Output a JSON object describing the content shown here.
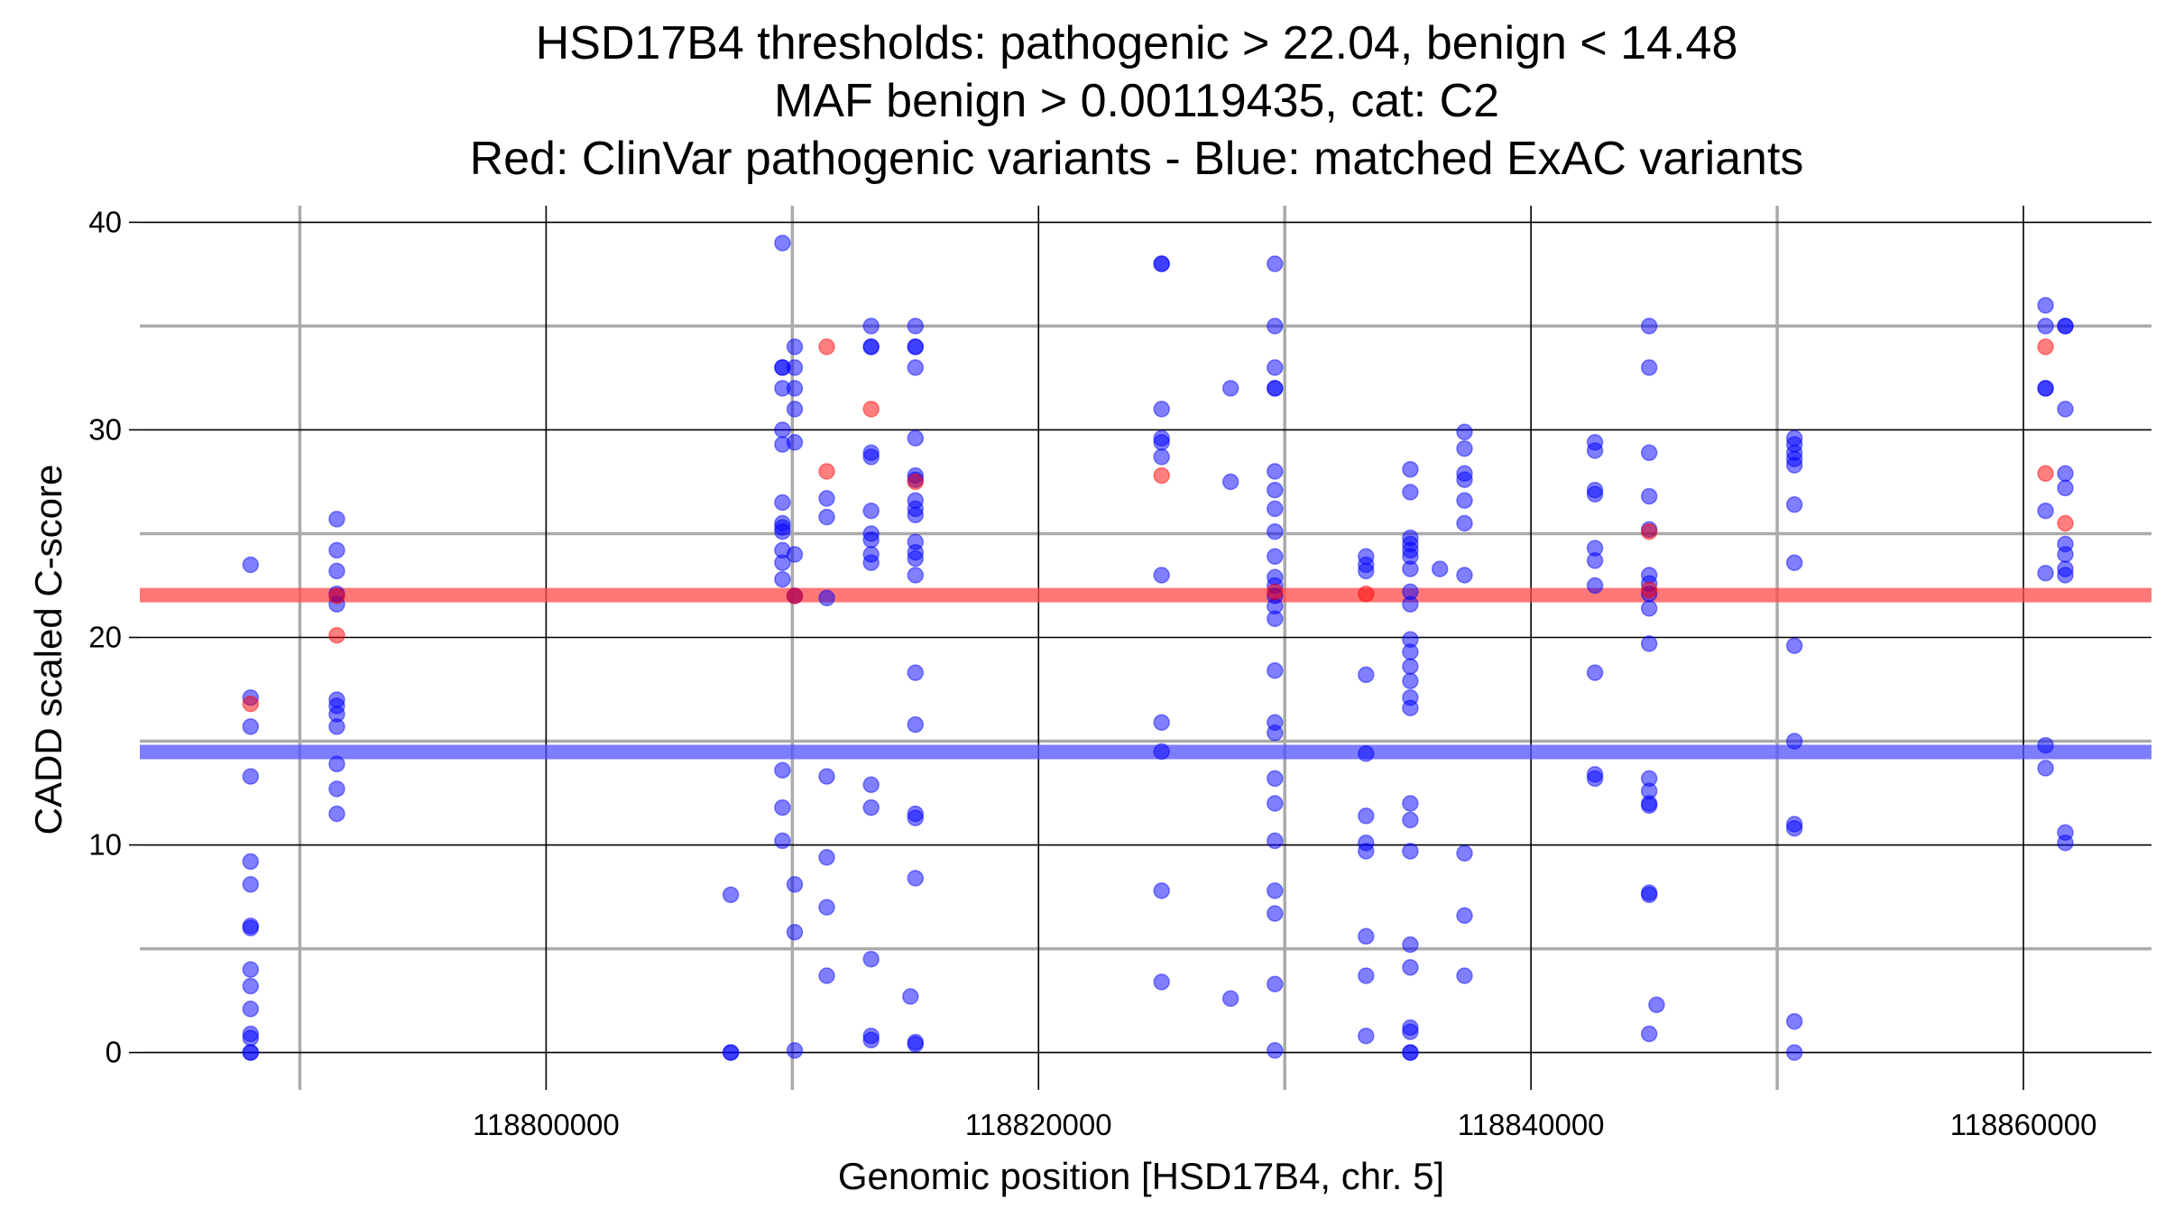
{
  "chart_data": {
    "type": "scatter",
    "title_lines": [
      "HSD17B4 thresholds: pathogenic > 22.04, benign < 14.48",
      "MAF benign > 0.00119435, cat: C2",
      "Red: ClinVar pathogenic variants - Blue: matched ExAC variants"
    ],
    "xlabel": "Genomic position [HSD17B4, chr. 5]",
    "ylabel": "CADD scaled C-score",
    "xlim": [
      118783500,
      118865200
    ],
    "ylim": [
      -1.8,
      40.8
    ],
    "x_ticks": [
      118800000,
      118820000,
      118840000,
      118860000
    ],
    "x_tick_labels": [
      "118800000",
      "118820000",
      "118840000",
      "118860000"
    ],
    "y_ticks": [
      0,
      10,
      20,
      30,
      40
    ],
    "y_tick_labels": [
      "0",
      "10",
      "20",
      "30",
      "40"
    ],
    "x_minor": [
      118790000,
      118810000,
      118830000,
      118850000
    ],
    "y_minor": [
      5,
      15,
      25,
      35
    ],
    "thresholds": {
      "pathogenic": 22.04,
      "benign": 14.48,
      "pathogenic_color": "#ff4a4a",
      "benign_color": "#5252ff"
    },
    "colors": {
      "benign_points": "#0000ff",
      "pathogenic_points": "#ff0000"
    },
    "series": [
      {
        "name": "matched ExAC variants",
        "color": "#0000ff",
        "points": [
          [
            118788000,
            23.5
          ],
          [
            118788000,
            17.1
          ],
          [
            118788000,
            15.7
          ],
          [
            118788000,
            13.3
          ],
          [
            118788000,
            9.2
          ],
          [
            118788000,
            8.1
          ],
          [
            118788000,
            6.1
          ],
          [
            118788000,
            6.0
          ],
          [
            118788000,
            4.0
          ],
          [
            118788000,
            3.2
          ],
          [
            118788000,
            2.1
          ],
          [
            118788000,
            0.9
          ],
          [
            118788000,
            0.7
          ],
          [
            118788000,
            0.0
          ],
          [
            118788000,
            0.0
          ],
          [
            118791500,
            25.7
          ],
          [
            118791500,
            24.2
          ],
          [
            118791500,
            23.2
          ],
          [
            118791500,
            22.1
          ],
          [
            118791500,
            21.6
          ],
          [
            118791500,
            17.0
          ],
          [
            118791500,
            16.7
          ],
          [
            118791500,
            16.3
          ],
          [
            118791500,
            15.7
          ],
          [
            118791500,
            13.9
          ],
          [
            118791500,
            12.7
          ],
          [
            118791500,
            11.5
          ],
          [
            118807500,
            7.6
          ],
          [
            118807500,
            0.0
          ],
          [
            118807500,
            0.0
          ],
          [
            118809600,
            39.0
          ],
          [
            118809600,
            33.0
          ],
          [
            118809600,
            33.0
          ],
          [
            118809600,
            32.0
          ],
          [
            118809600,
            30.0
          ],
          [
            118809600,
            29.3
          ],
          [
            118809600,
            26.5
          ],
          [
            118809600,
            25.5
          ],
          [
            118809600,
            25.3
          ],
          [
            118809600,
            25.1
          ],
          [
            118809600,
            24.2
          ],
          [
            118809600,
            23.6
          ],
          [
            118809600,
            22.8
          ],
          [
            118809600,
            13.6
          ],
          [
            118809600,
            11.8
          ],
          [
            118809600,
            10.2
          ],
          [
            118810100,
            34.0
          ],
          [
            118810100,
            33.0
          ],
          [
            118810100,
            32.0
          ],
          [
            118810100,
            31.0
          ],
          [
            118810100,
            29.4
          ],
          [
            118810100,
            24.0
          ],
          [
            118810100,
            22.0
          ],
          [
            118810100,
            8.1
          ],
          [
            118810100,
            5.8
          ],
          [
            118810100,
            0.1
          ],
          [
            118811400,
            26.7
          ],
          [
            118811400,
            25.8
          ],
          [
            118811400,
            21.9
          ],
          [
            118811400,
            13.3
          ],
          [
            118811400,
            9.4
          ],
          [
            118811400,
            7.0
          ],
          [
            118811400,
            3.7
          ],
          [
            118813200,
            35.0
          ],
          [
            118813200,
            34.0
          ],
          [
            118813200,
            34.0
          ],
          [
            118813200,
            28.9
          ],
          [
            118813200,
            28.7
          ],
          [
            118813200,
            26.1
          ],
          [
            118813200,
            25.0
          ],
          [
            118813200,
            24.7
          ],
          [
            118813200,
            24.0
          ],
          [
            118813200,
            23.6
          ],
          [
            118813200,
            12.9
          ],
          [
            118813200,
            11.8
          ],
          [
            118813200,
            4.5
          ],
          [
            118813200,
            0.8
          ],
          [
            118813200,
            0.6
          ],
          [
            118815000,
            35.0
          ],
          [
            118815000,
            34.0
          ],
          [
            118815000,
            34.0
          ],
          [
            118815000,
            33.0
          ],
          [
            118815000,
            29.6
          ],
          [
            118815000,
            27.8
          ],
          [
            118815000,
            27.6
          ],
          [
            118815000,
            26.6
          ],
          [
            118815000,
            26.2
          ],
          [
            118815000,
            25.9
          ],
          [
            118815000,
            24.6
          ],
          [
            118815000,
            24.1
          ],
          [
            118815000,
            23.8
          ],
          [
            118815000,
            23.0
          ],
          [
            118815000,
            18.3
          ],
          [
            118815000,
            15.8
          ],
          [
            118815000,
            11.5
          ],
          [
            118815000,
            11.3
          ],
          [
            118815000,
            8.4
          ],
          [
            118815000,
            0.5
          ],
          [
            118815000,
            0.4
          ],
          [
            118814800,
            2.7
          ],
          [
            118825000,
            38.0
          ],
          [
            118825000,
            38.0
          ],
          [
            118825000,
            31.0
          ],
          [
            118825000,
            29.6
          ],
          [
            118825000,
            29.4
          ],
          [
            118825000,
            28.7
          ],
          [
            118825000,
            23.0
          ],
          [
            118825000,
            15.9
          ],
          [
            118825000,
            14.5
          ],
          [
            118825000,
            7.8
          ],
          [
            118825000,
            3.4
          ],
          [
            118827800,
            32.0
          ],
          [
            118827800,
            27.5
          ],
          [
            118827800,
            2.6
          ],
          [
            118829600,
            38.0
          ],
          [
            118829600,
            35.0
          ],
          [
            118829600,
            33.0
          ],
          [
            118829600,
            32.0
          ],
          [
            118829600,
            32.0
          ],
          [
            118829600,
            28.0
          ],
          [
            118829600,
            27.1
          ],
          [
            118829600,
            26.2
          ],
          [
            118829600,
            25.1
          ],
          [
            118829600,
            23.9
          ],
          [
            118829600,
            22.9
          ],
          [
            118829600,
            22.5
          ],
          [
            118829600,
            22.0
          ],
          [
            118829600,
            21.5
          ],
          [
            118829600,
            20.9
          ],
          [
            118829600,
            18.4
          ],
          [
            118829600,
            15.9
          ],
          [
            118829600,
            15.4
          ],
          [
            118829600,
            13.2
          ],
          [
            118829600,
            12.0
          ],
          [
            118829600,
            10.2
          ],
          [
            118829600,
            7.8
          ],
          [
            118829600,
            6.7
          ],
          [
            118829600,
            3.3
          ],
          [
            118829600,
            0.1
          ],
          [
            118833300,
            23.9
          ],
          [
            118833300,
            23.5
          ],
          [
            118833300,
            23.2
          ],
          [
            118833300,
            18.2
          ],
          [
            118833300,
            14.4
          ],
          [
            118833300,
            11.4
          ],
          [
            118833300,
            10.1
          ],
          [
            118833300,
            9.7
          ],
          [
            118833300,
            5.6
          ],
          [
            118833300,
            3.7
          ],
          [
            118833300,
            0.8
          ],
          [
            118835100,
            28.1
          ],
          [
            118835100,
            27.0
          ],
          [
            118835100,
            24.8
          ],
          [
            118835100,
            24.5
          ],
          [
            118835100,
            24.2
          ],
          [
            118835100,
            23.9
          ],
          [
            118835100,
            23.3
          ],
          [
            118835100,
            22.2
          ],
          [
            118835100,
            21.6
          ],
          [
            118835100,
            19.9
          ],
          [
            118835100,
            19.3
          ],
          [
            118835100,
            18.6
          ],
          [
            118835100,
            17.9
          ],
          [
            118835100,
            17.1
          ],
          [
            118835100,
            16.6
          ],
          [
            118835100,
            12.0
          ],
          [
            118835100,
            11.2
          ],
          [
            118835100,
            9.7
          ],
          [
            118835100,
            5.2
          ],
          [
            118835100,
            4.1
          ],
          [
            118835100,
            1.2
          ],
          [
            118835100,
            1.0
          ],
          [
            118835100,
            0.0
          ],
          [
            118835100,
            0.0
          ],
          [
            118836300,
            23.3
          ],
          [
            118837300,
            29.9
          ],
          [
            118837300,
            29.1
          ],
          [
            118837300,
            27.9
          ],
          [
            118837300,
            27.6
          ],
          [
            118837300,
            26.6
          ],
          [
            118837300,
            25.5
          ],
          [
            118837300,
            23.0
          ],
          [
            118837300,
            9.6
          ],
          [
            118837300,
            6.6
          ],
          [
            118837300,
            3.7
          ],
          [
            118842600,
            29.4
          ],
          [
            118842600,
            29.0
          ],
          [
            118842600,
            27.1
          ],
          [
            118842600,
            26.9
          ],
          [
            118842600,
            24.3
          ],
          [
            118842600,
            23.7
          ],
          [
            118842600,
            22.5
          ],
          [
            118842600,
            18.3
          ],
          [
            118842600,
            13.4
          ],
          [
            118842600,
            13.2
          ],
          [
            118844800,
            35.0
          ],
          [
            118844800,
            33.0
          ],
          [
            118844800,
            28.9
          ],
          [
            118844800,
            26.8
          ],
          [
            118844800,
            25.2
          ],
          [
            118844800,
            23.0
          ],
          [
            118844800,
            22.6
          ],
          [
            118844800,
            22.1
          ],
          [
            118844800,
            21.4
          ],
          [
            118844800,
            19.7
          ],
          [
            118844800,
            13.2
          ],
          [
            118844800,
            12.6
          ],
          [
            118844800,
            12.0
          ],
          [
            118844800,
            11.9
          ],
          [
            118844800,
            7.7
          ],
          [
            118844800,
            7.6
          ],
          [
            118844800,
            0.9
          ],
          [
            118845100,
            2.3
          ],
          [
            118850700,
            29.6
          ],
          [
            118850700,
            29.3
          ],
          [
            118850700,
            28.9
          ],
          [
            118850700,
            28.6
          ],
          [
            118850700,
            28.3
          ],
          [
            118850700,
            26.4
          ],
          [
            118850700,
            23.6
          ],
          [
            118850700,
            19.6
          ],
          [
            118850700,
            15.0
          ],
          [
            118850700,
            11.0
          ],
          [
            118850700,
            10.8
          ],
          [
            118850700,
            1.5
          ],
          [
            118850700,
            0.0
          ],
          [
            118860900,
            36.0
          ],
          [
            118860900,
            35.0
          ],
          [
            118860900,
            32.0
          ],
          [
            118860900,
            32.0
          ],
          [
            118860900,
            26.1
          ],
          [
            118860900,
            23.1
          ],
          [
            118860900,
            14.8
          ],
          [
            118860900,
            13.7
          ],
          [
            118861700,
            35.0
          ],
          [
            118861700,
            35.0
          ],
          [
            118861700,
            31.0
          ],
          [
            118861700,
            27.9
          ],
          [
            118861700,
            27.2
          ],
          [
            118861700,
            24.5
          ],
          [
            118861700,
            24.0
          ],
          [
            118861700,
            23.3
          ],
          [
            118861700,
            23.0
          ],
          [
            118861700,
            10.6
          ],
          [
            118861700,
            10.1
          ]
        ]
      },
      {
        "name": "ClinVar pathogenic variants",
        "color": "#ff0000",
        "points": [
          [
            118788000,
            16.8
          ],
          [
            118791500,
            22.0
          ],
          [
            118791500,
            20.1
          ],
          [
            118810100,
            22.0
          ],
          [
            118811400,
            34.0
          ],
          [
            118811400,
            28.0
          ],
          [
            118813200,
            31.0
          ],
          [
            118815000,
            27.5
          ],
          [
            118825000,
            27.8
          ],
          [
            118829600,
            22.2
          ],
          [
            118833300,
            22.1
          ],
          [
            118844800,
            25.1
          ],
          [
            118844800,
            22.3
          ],
          [
            118860900,
            34.0
          ],
          [
            118860900,
            27.9
          ],
          [
            118861700,
            25.5
          ]
        ]
      }
    ]
  }
}
